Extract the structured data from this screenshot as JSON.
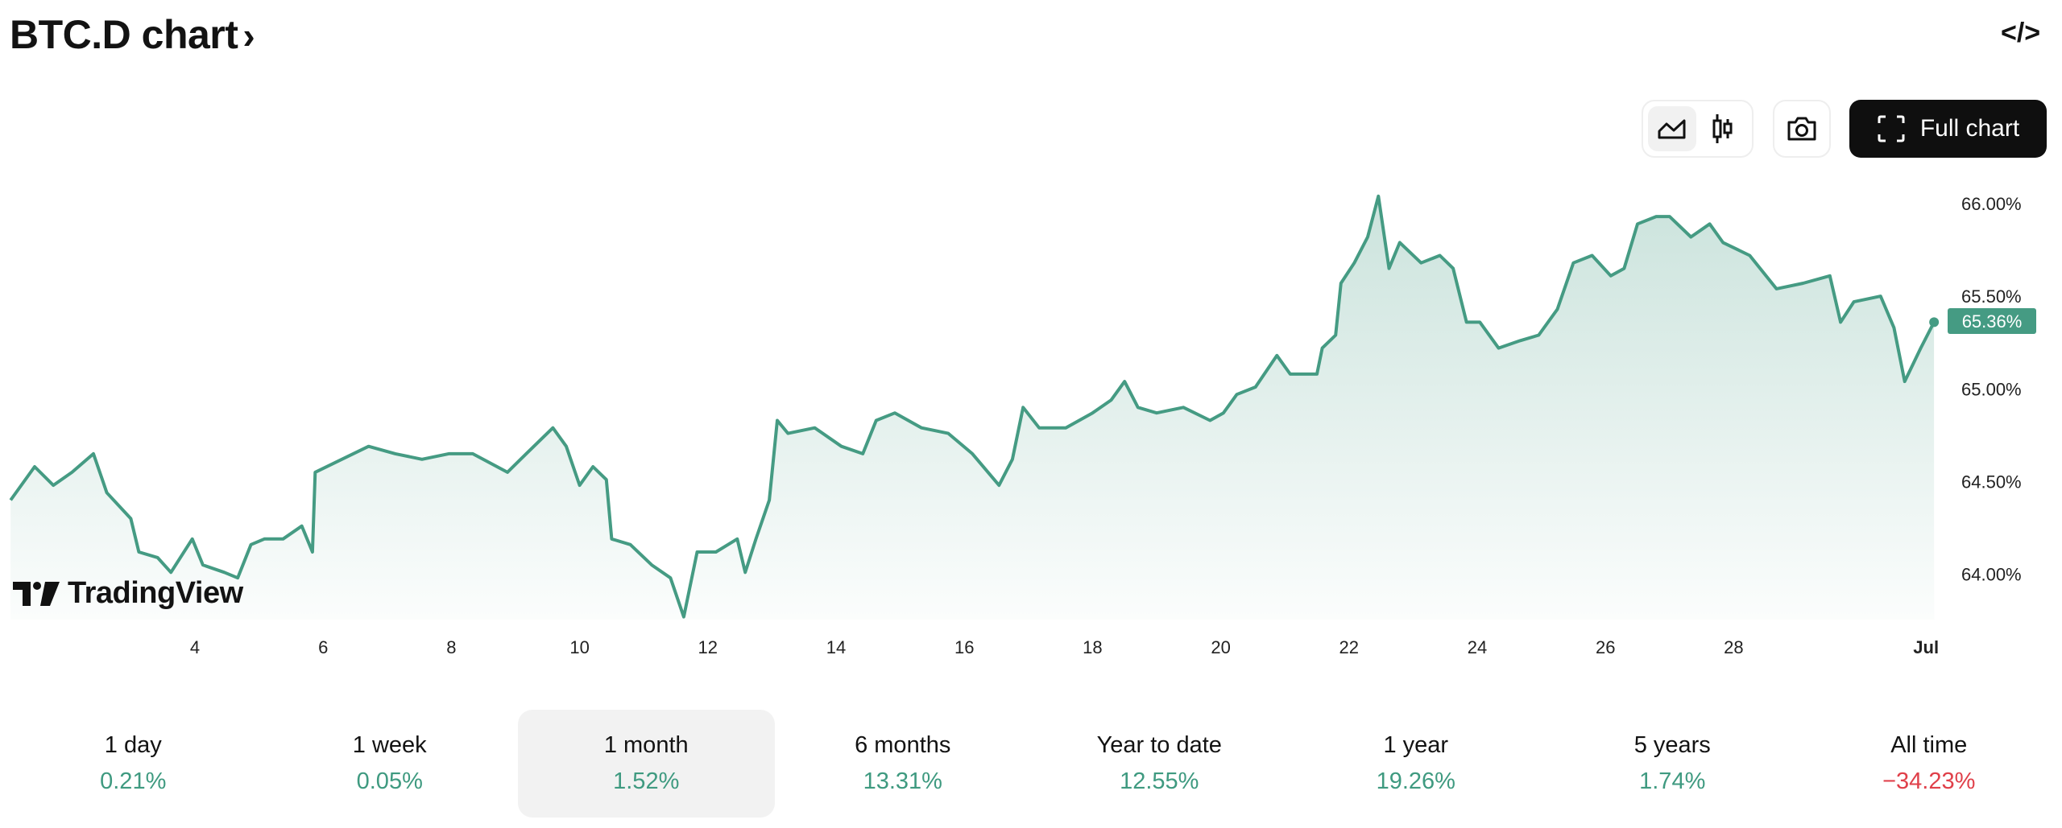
{
  "header": {
    "title": "BTC.D chart",
    "chevron": "›",
    "embed_icon": "code-icon",
    "embed_glyph": "</>"
  },
  "toolbar": {
    "line_icon": "area-chart-icon",
    "candle_icon": "candlestick-icon",
    "camera_icon": "camera-icon",
    "full_chart_label": "Full chart",
    "active_style": "area"
  },
  "logo": {
    "text": "TradingView"
  },
  "colors": {
    "line": "#459b83",
    "positive": "#3f9a80",
    "negative": "#e0404a",
    "button_dark": "#0f0f0f"
  },
  "chart_data": {
    "type": "area",
    "ylim": [
      63.7,
      66.15
    ],
    "y_ticks": [
      "66.00%",
      "65.50%",
      "65.00%",
      "64.50%",
      "64.00%"
    ],
    "y_tick_values": [
      66.0,
      65.5,
      65.0,
      64.5,
      64.0
    ],
    "x_ticks": [
      "4",
      "6",
      "8",
      "10",
      "12",
      "14",
      "16",
      "18",
      "20",
      "22",
      "24",
      "26",
      "28",
      "Jul"
    ],
    "x_tick_dates": [
      "06-04",
      "06-06",
      "06-08",
      "06-10",
      "06-12",
      "06-14",
      "06-16",
      "06-18",
      "06-20",
      "06-22",
      "06-24",
      "06-26",
      "06-28",
      "07-01"
    ],
    "last_value_label": "65.36%",
    "points": [
      [
        "06-01 03",
        64.4
      ],
      [
        "06-01 12",
        64.58
      ],
      [
        "06-01 19",
        64.48
      ],
      [
        "06-02 02",
        64.55
      ],
      [
        "06-02 10",
        64.65
      ],
      [
        "06-02 15",
        64.44
      ],
      [
        "06-03 00",
        64.3
      ],
      [
        "06-03 03",
        64.12
      ],
      [
        "06-03 10",
        64.09
      ],
      [
        "06-03 15",
        64.01
      ],
      [
        "06-03 23",
        64.19
      ],
      [
        "06-04 03",
        64.05
      ],
      [
        "06-04 11",
        64.01
      ],
      [
        "06-04 16",
        63.98
      ],
      [
        "06-04 21",
        64.16
      ],
      [
        "06-05 02",
        64.19
      ],
      [
        "06-05 09",
        64.19
      ],
      [
        "06-05 16",
        64.26
      ],
      [
        "06-05 20",
        64.12
      ],
      [
        "06-05 21",
        64.55
      ],
      [
        "06-06 07",
        64.62
      ],
      [
        "06-06 17",
        64.69
      ],
      [
        "06-07 03",
        64.65
      ],
      [
        "06-07 13",
        64.62
      ],
      [
        "06-07 23",
        64.65
      ],
      [
        "06-08 08",
        64.65
      ],
      [
        "06-08 21",
        64.55
      ],
      [
        "06-09 04",
        64.65
      ],
      [
        "06-09 14",
        64.79
      ],
      [
        "06-09 19",
        64.69
      ],
      [
        "06-10 00",
        64.48
      ],
      [
        "06-10 05",
        64.58
      ],
      [
        "06-10 10",
        64.51
      ],
      [
        "06-10 12",
        64.19
      ],
      [
        "06-10 19",
        64.16
      ],
      [
        "06-11 03",
        64.05
      ],
      [
        "06-11 10",
        63.98
      ],
      [
        "06-11 15",
        63.77
      ],
      [
        "06-11 20",
        64.12
      ],
      [
        "06-12 03",
        64.12
      ],
      [
        "06-12 11",
        64.19
      ],
      [
        "06-12 14",
        64.01
      ],
      [
        "06-12 18",
        64.19
      ],
      [
        "06-12 23",
        64.4
      ],
      [
        "06-13 02",
        64.83
      ],
      [
        "06-13 06",
        64.76
      ],
      [
        "06-13 16",
        64.79
      ],
      [
        "06-14 02",
        64.69
      ],
      [
        "06-14 10",
        64.65
      ],
      [
        "06-14 15",
        64.83
      ],
      [
        "06-14 22",
        64.87
      ],
      [
        "06-15 08",
        64.79
      ],
      [
        "06-15 18",
        64.76
      ],
      [
        "06-16 03",
        64.65
      ],
      [
        "06-16 13",
        64.48
      ],
      [
        "06-16 18",
        64.62
      ],
      [
        "06-16 22",
        64.9
      ],
      [
        "06-17 04",
        64.79
      ],
      [
        "06-17 14",
        64.79
      ],
      [
        "06-18 00",
        64.87
      ],
      [
        "06-18 07",
        64.94
      ],
      [
        "06-18 12",
        65.04
      ],
      [
        "06-18 17",
        64.9
      ],
      [
        "06-19 00",
        64.87
      ],
      [
        "06-19 10",
        64.9
      ],
      [
        "06-19 20",
        64.83
      ],
      [
        "06-20 01",
        64.87
      ],
      [
        "06-20 06",
        64.97
      ],
      [
        "06-20 13",
        65.01
      ],
      [
        "06-20 21",
        65.18
      ],
      [
        "06-21 02",
        65.08
      ],
      [
        "06-21 12",
        65.08
      ],
      [
        "06-21 14",
        65.22
      ],
      [
        "06-21 19",
        65.29
      ],
      [
        "06-21 21",
        65.57
      ],
      [
        "06-22 02",
        65.68
      ],
      [
        "06-22 07",
        65.82
      ],
      [
        "06-22 11",
        66.04
      ],
      [
        "06-22 15",
        65.65
      ],
      [
        "06-22 19",
        65.79
      ],
      [
        "06-23 03",
        65.68
      ],
      [
        "06-23 10",
        65.72
      ],
      [
        "06-23 15",
        65.65
      ],
      [
        "06-23 20",
        65.36
      ],
      [
        "06-24 01",
        65.36
      ],
      [
        "06-24 08",
        65.22
      ],
      [
        "06-24 16",
        65.26
      ],
      [
        "06-24 23",
        65.29
      ],
      [
        "06-25 06",
        65.43
      ],
      [
        "06-25 12",
        65.68
      ],
      [
        "06-25 19",
        65.72
      ],
      [
        "06-26 02",
        65.61
      ],
      [
        "06-26 07",
        65.65
      ],
      [
        "06-26 12",
        65.89
      ],
      [
        "06-26 19",
        65.93
      ],
      [
        "06-27 00",
        65.93
      ],
      [
        "06-27 08",
        65.82
      ],
      [
        "06-27 15",
        65.89
      ],
      [
        "06-27 20",
        65.79
      ],
      [
        "06-28 06",
        65.72
      ],
      [
        "06-28 16",
        65.54
      ],
      [
        "06-29 02",
        65.57
      ],
      [
        "06-29 12",
        65.61
      ],
      [
        "06-29 16",
        65.36
      ],
      [
        "06-29 21",
        65.47
      ],
      [
        "06-30 07",
        65.5
      ],
      [
        "06-30 12",
        65.33
      ],
      [
        "06-30 16",
        65.04
      ],
      [
        "06-30 22",
        65.22
      ],
      [
        "07-01 03",
        65.36
      ]
    ]
  },
  "periods": [
    {
      "label": "1 day",
      "value": "0.21%",
      "negative": false,
      "active": false
    },
    {
      "label": "1 week",
      "value": "0.05%",
      "negative": false,
      "active": false
    },
    {
      "label": "1 month",
      "value": "1.52%",
      "negative": false,
      "active": true
    },
    {
      "label": "6 months",
      "value": "13.31%",
      "negative": false,
      "active": false
    },
    {
      "label": "Year to date",
      "value": "12.55%",
      "negative": false,
      "active": false
    },
    {
      "label": "1 year",
      "value": "19.26%",
      "negative": false,
      "active": false
    },
    {
      "label": "5 years",
      "value": "1.74%",
      "negative": false,
      "active": false
    },
    {
      "label": "All time",
      "value": "−34.23%",
      "negative": true,
      "active": false
    }
  ]
}
